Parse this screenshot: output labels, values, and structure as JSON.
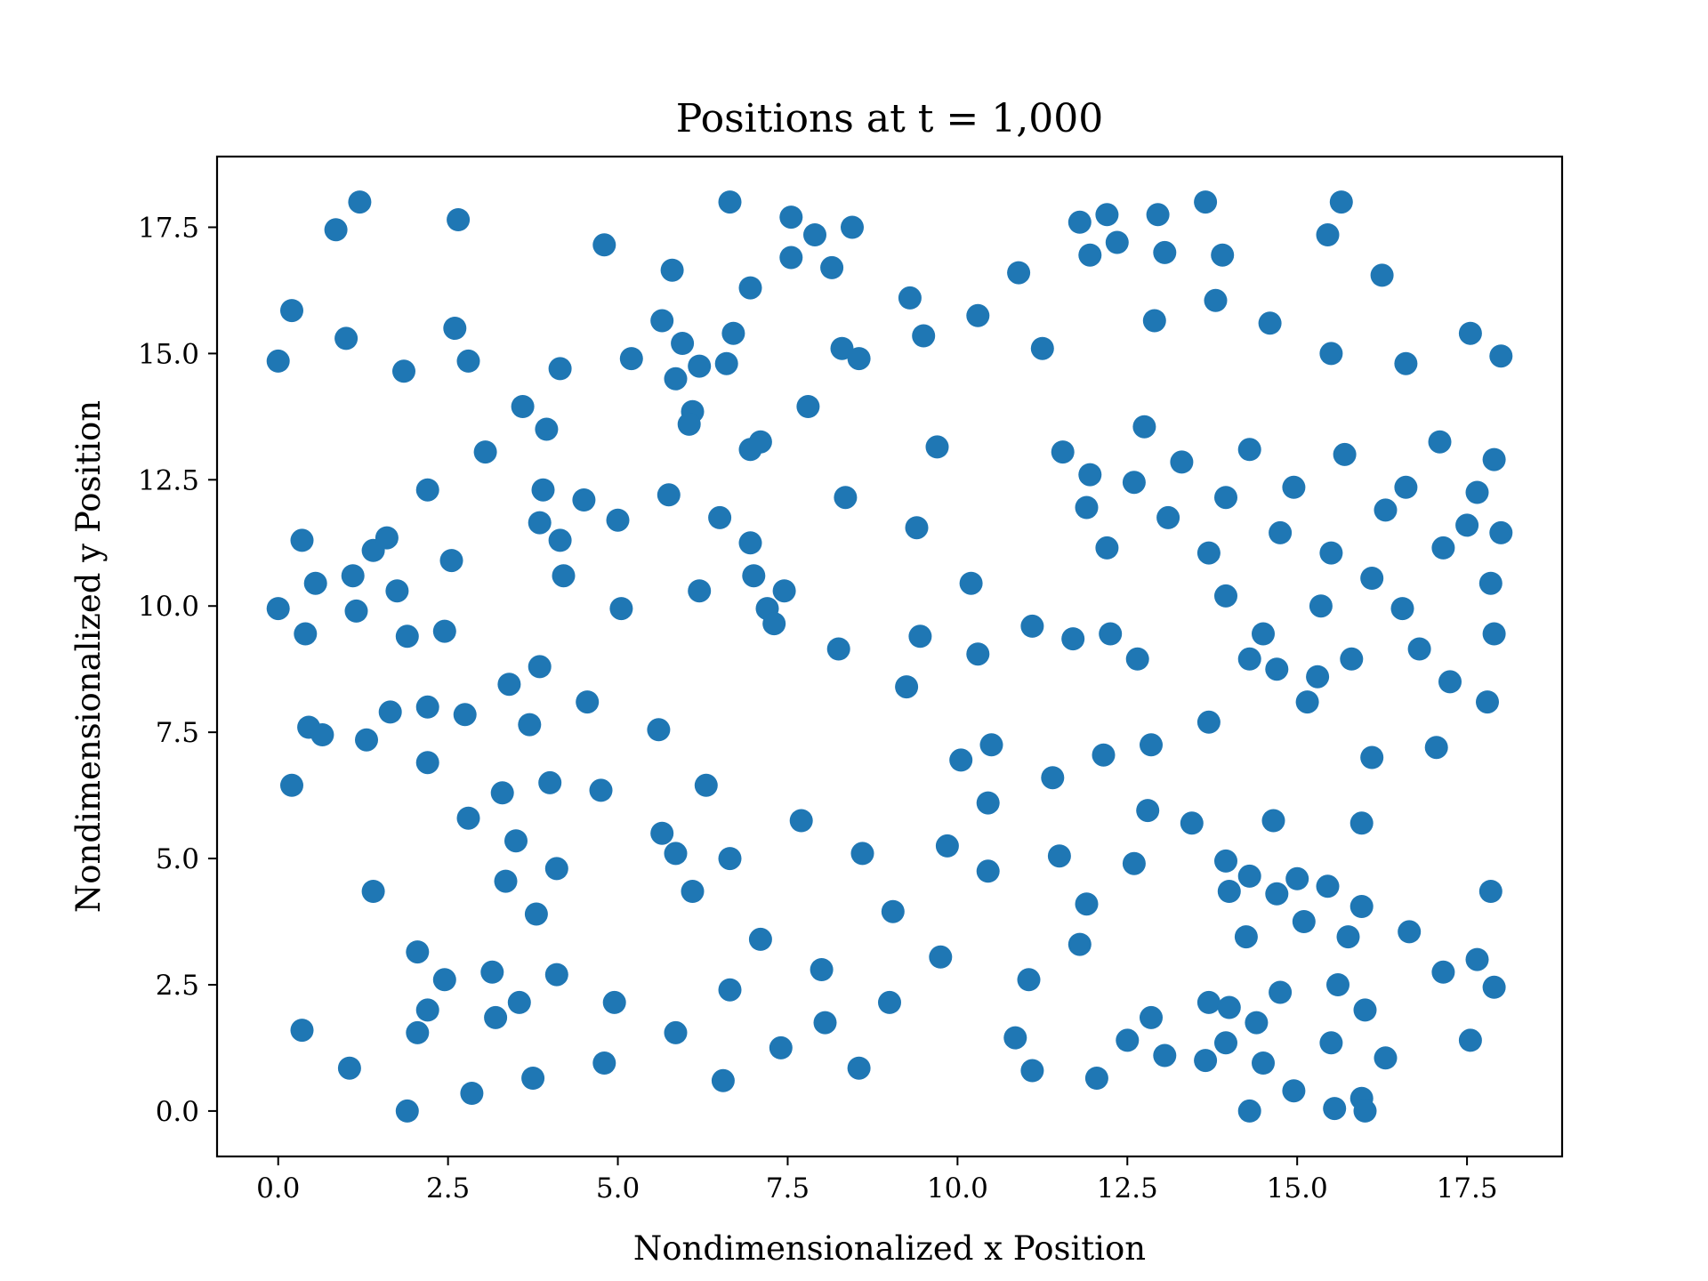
{
  "chart_data": {
    "type": "scatter",
    "title": "Positions at t = 1,000",
    "xlabel": "Nondimensionalized x Position",
    "ylabel": "Nondimensionalized y Position",
    "xlim": [
      -0.9,
      18.9
    ],
    "ylim": [
      -0.9,
      18.9
    ],
    "xticks": [
      0.0,
      2.5,
      5.0,
      7.5,
      10.0,
      12.5,
      15.0,
      17.5
    ],
    "xtick_labels": [
      "0.0",
      "2.5",
      "5.0",
      "7.5",
      "10.0",
      "12.5",
      "15.0",
      "17.5"
    ],
    "yticks": [
      0.0,
      2.5,
      5.0,
      7.5,
      10.0,
      12.5,
      15.0,
      17.5
    ],
    "ytick_labels": [
      "0.0",
      "2.5",
      "5.0",
      "7.5",
      "10.0",
      "12.5",
      "15.0",
      "17.5"
    ],
    "grid": false,
    "marker_color": "#1f77b4",
    "points": [
      [
        0.0,
        14.85
      ],
      [
        0.2,
        15.85
      ],
      [
        0.85,
        17.45
      ],
      [
        1.2,
        18.0
      ],
      [
        1.0,
        15.3
      ],
      [
        1.85,
        14.65
      ],
      [
        2.6,
        15.5
      ],
      [
        2.65,
        17.65
      ],
      [
        2.8,
        14.85
      ],
      [
        0.0,
        9.95
      ],
      [
        0.35,
        11.3
      ],
      [
        0.55,
        10.45
      ],
      [
        0.4,
        9.45
      ],
      [
        1.1,
        10.6
      ],
      [
        1.15,
        9.9
      ],
      [
        1.4,
        11.1
      ],
      [
        1.6,
        11.35
      ],
      [
        1.75,
        10.3
      ],
      [
        1.9,
        9.4
      ],
      [
        2.2,
        12.3
      ],
      [
        2.45,
        9.5
      ],
      [
        2.55,
        10.9
      ],
      [
        0.45,
        7.6
      ],
      [
        0.65,
        7.45
      ],
      [
        0.2,
        6.45
      ],
      [
        1.3,
        7.35
      ],
      [
        1.65,
        7.9
      ],
      [
        2.2,
        8.0
      ],
      [
        2.2,
        6.9
      ],
      [
        2.75,
        7.85
      ],
      [
        2.8,
        5.8
      ],
      [
        1.4,
        4.35
      ],
      [
        2.05,
        3.15
      ],
      [
        2.05,
        1.55
      ],
      [
        2.2,
        2.0
      ],
      [
        2.45,
        2.6
      ],
      [
        0.35,
        1.6
      ],
      [
        1.05,
        0.85
      ],
      [
        1.9,
        0.0
      ],
      [
        2.85,
        0.35
      ],
      [
        3.6,
        13.95
      ],
      [
        3.05,
        13.05
      ],
      [
        3.9,
        12.3
      ],
      [
        3.95,
        13.5
      ],
      [
        3.85,
        11.65
      ],
      [
        4.15,
        14.7
      ],
      [
        4.15,
        11.3
      ],
      [
        4.2,
        10.6
      ],
      [
        4.5,
        12.1
      ],
      [
        5.2,
        14.9
      ],
      [
        4.8,
        17.15
      ],
      [
        5.0,
        11.7
      ],
      [
        5.05,
        9.95
      ],
      [
        3.4,
        8.45
      ],
      [
        3.7,
        7.65
      ],
      [
        3.85,
        8.8
      ],
      [
        4.55,
        8.1
      ],
      [
        3.3,
        6.3
      ],
      [
        4.0,
        6.5
      ],
      [
        4.75,
        6.35
      ],
      [
        3.5,
        5.35
      ],
      [
        3.35,
        4.55
      ],
      [
        4.1,
        4.8
      ],
      [
        3.8,
        3.9
      ],
      [
        3.15,
        2.75
      ],
      [
        3.2,
        1.85
      ],
      [
        3.55,
        2.15
      ],
      [
        4.1,
        2.7
      ],
      [
        3.75,
        0.65
      ],
      [
        4.8,
        0.95
      ],
      [
        4.95,
        2.15
      ],
      [
        5.65,
        15.65
      ],
      [
        5.8,
        16.65
      ],
      [
        5.85,
        14.5
      ],
      [
        5.95,
        15.2
      ],
      [
        6.2,
        14.75
      ],
      [
        6.6,
        14.8
      ],
      [
        6.7,
        15.4
      ],
      [
        6.95,
        16.3
      ],
      [
        6.65,
        18.0
      ],
      [
        6.1,
        13.85
      ],
      [
        6.05,
        13.6
      ],
      [
        5.75,
        12.2
      ],
      [
        6.5,
        11.75
      ],
      [
        6.95,
        13.1
      ],
      [
        7.1,
        13.25
      ],
      [
        6.95,
        11.25
      ],
      [
        7.0,
        10.6
      ],
      [
        6.2,
        10.3
      ],
      [
        7.2,
        9.95
      ],
      [
        7.3,
        9.65
      ],
      [
        7.45,
        10.3
      ],
      [
        7.55,
        17.7
      ],
      [
        7.55,
        16.9
      ],
      [
        7.9,
        17.35
      ],
      [
        8.15,
        16.7
      ],
      [
        8.45,
        17.5
      ],
      [
        8.3,
        15.1
      ],
      [
        8.55,
        14.9
      ],
      [
        7.8,
        13.95
      ],
      [
        8.35,
        12.15
      ],
      [
        8.25,
        9.15
      ],
      [
        5.6,
        7.55
      ],
      [
        6.3,
        6.45
      ],
      [
        5.65,
        5.5
      ],
      [
        5.85,
        5.1
      ],
      [
        6.1,
        4.35
      ],
      [
        6.65,
        5.0
      ],
      [
        7.7,
        5.75
      ],
      [
        7.1,
        3.4
      ],
      [
        6.65,
        2.4
      ],
      [
        5.85,
        1.55
      ],
      [
        6.55,
        0.6
      ],
      [
        7.4,
        1.25
      ],
      [
        8.0,
        2.8
      ],
      [
        8.05,
        1.75
      ],
      [
        8.6,
        5.1
      ],
      [
        8.55,
        0.85
      ],
      [
        9.05,
        3.95
      ],
      [
        9.0,
        2.15
      ],
      [
        9.75,
        3.05
      ],
      [
        9.85,
        5.25
      ],
      [
        9.3,
        16.1
      ],
      [
        9.5,
        15.35
      ],
      [
        9.7,
        13.15
      ],
      [
        9.4,
        11.55
      ],
      [
        9.45,
        9.4
      ],
      [
        9.25,
        8.4
      ],
      [
        10.3,
        15.75
      ],
      [
        10.9,
        16.6
      ],
      [
        11.25,
        15.1
      ],
      [
        10.2,
        10.45
      ],
      [
        10.3,
        9.05
      ],
      [
        11.1,
        9.6
      ],
      [
        10.05,
        6.95
      ],
      [
        10.5,
        7.25
      ],
      [
        10.45,
        6.1
      ],
      [
        10.45,
        4.75
      ],
      [
        11.4,
        6.6
      ],
      [
        11.5,
        5.05
      ],
      [
        11.05,
        2.6
      ],
      [
        10.85,
        1.45
      ],
      [
        11.1,
        0.8
      ],
      [
        11.8,
        17.6
      ],
      [
        11.95,
        16.95
      ],
      [
        12.2,
        17.75
      ],
      [
        12.35,
        17.2
      ],
      [
        11.55,
        13.05
      ],
      [
        11.95,
        12.6
      ],
      [
        11.9,
        11.95
      ],
      [
        12.2,
        11.15
      ],
      [
        11.7,
        9.35
      ],
      [
        12.25,
        9.45
      ],
      [
        12.65,
        8.95
      ],
      [
        12.15,
        7.05
      ],
      [
        12.8,
        5.95
      ],
      [
        12.6,
        4.9
      ],
      [
        11.9,
        4.1
      ],
      [
        11.8,
        3.3
      ],
      [
        12.5,
        1.4
      ],
      [
        12.05,
        0.65
      ],
      [
        12.95,
        17.75
      ],
      [
        13.05,
        17.0
      ],
      [
        12.9,
        15.65
      ],
      [
        12.75,
        13.55
      ],
      [
        12.6,
        12.45
      ],
      [
        13.3,
        12.85
      ],
      [
        13.1,
        11.75
      ],
      [
        12.85,
        7.25
      ],
      [
        13.45,
        5.7
      ],
      [
        12.85,
        1.85
      ],
      [
        13.05,
        1.1
      ],
      [
        13.65,
        18.0
      ],
      [
        13.9,
        16.95
      ],
      [
        13.8,
        16.05
      ],
      [
        14.3,
        13.1
      ],
      [
        13.95,
        12.15
      ],
      [
        13.7,
        11.05
      ],
      [
        13.95,
        10.2
      ],
      [
        14.3,
        8.95
      ],
      [
        14.5,
        9.45
      ],
      [
        14.7,
        8.75
      ],
      [
        13.7,
        7.7
      ],
      [
        13.95,
        4.95
      ],
      [
        14.0,
        4.35
      ],
      [
        14.3,
        4.65
      ],
      [
        14.25,
        3.45
      ],
      [
        14.65,
        5.75
      ],
      [
        14.7,
        4.3
      ],
      [
        13.7,
        2.15
      ],
      [
        14.0,
        2.05
      ],
      [
        14.75,
        2.35
      ],
      [
        14.4,
        1.75
      ],
      [
        13.95,
        1.35
      ],
      [
        13.65,
        1.0
      ],
      [
        14.5,
        0.95
      ],
      [
        14.3,
        0.0
      ],
      [
        14.6,
        15.6
      ],
      [
        14.75,
        11.45
      ],
      [
        14.95,
        12.35
      ],
      [
        15.15,
        8.1
      ],
      [
        15.3,
        8.6
      ],
      [
        15.35,
        10.0
      ],
      [
        15.45,
        17.35
      ],
      [
        15.5,
        15.0
      ],
      [
        15.5,
        11.05
      ],
      [
        15.65,
        18.0
      ],
      [
        15.7,
        13.0
      ],
      [
        15.8,
        8.95
      ],
      [
        16.25,
        16.55
      ],
      [
        16.1,
        10.55
      ],
      [
        16.3,
        11.9
      ],
      [
        16.1,
        7.0
      ],
      [
        15.95,
        5.7
      ],
      [
        15.0,
        4.6
      ],
      [
        15.1,
        3.75
      ],
      [
        15.45,
        4.45
      ],
      [
        15.75,
        3.45
      ],
      [
        15.95,
        4.05
      ],
      [
        15.6,
        2.5
      ],
      [
        15.5,
        1.35
      ],
      [
        15.55,
        0.05
      ],
      [
        14.95,
        0.4
      ],
      [
        16.0,
        2.0
      ],
      [
        15.95,
        0.25
      ],
      [
        16.0,
        0.0
      ],
      [
        16.3,
        1.05
      ],
      [
        16.6,
        14.8
      ],
      [
        16.6,
        12.35
      ],
      [
        16.55,
        9.95
      ],
      [
        16.8,
        9.15
      ],
      [
        17.1,
        13.25
      ],
      [
        17.15,
        11.15
      ],
      [
        17.25,
        8.5
      ],
      [
        17.05,
        7.2
      ],
      [
        17.55,
        15.4
      ],
      [
        17.5,
        11.6
      ],
      [
        17.65,
        12.25
      ],
      [
        17.85,
        10.45
      ],
      [
        17.8,
        8.1
      ],
      [
        17.9,
        12.9
      ],
      [
        17.9,
        9.45
      ],
      [
        18.0,
        14.95
      ],
      [
        18.0,
        11.45
      ],
      [
        16.65,
        3.55
      ],
      [
        17.15,
        2.75
      ],
      [
        17.65,
        3.0
      ],
      [
        17.55,
        1.4
      ],
      [
        17.85,
        4.35
      ],
      [
        17.9,
        2.45
      ]
    ]
  }
}
